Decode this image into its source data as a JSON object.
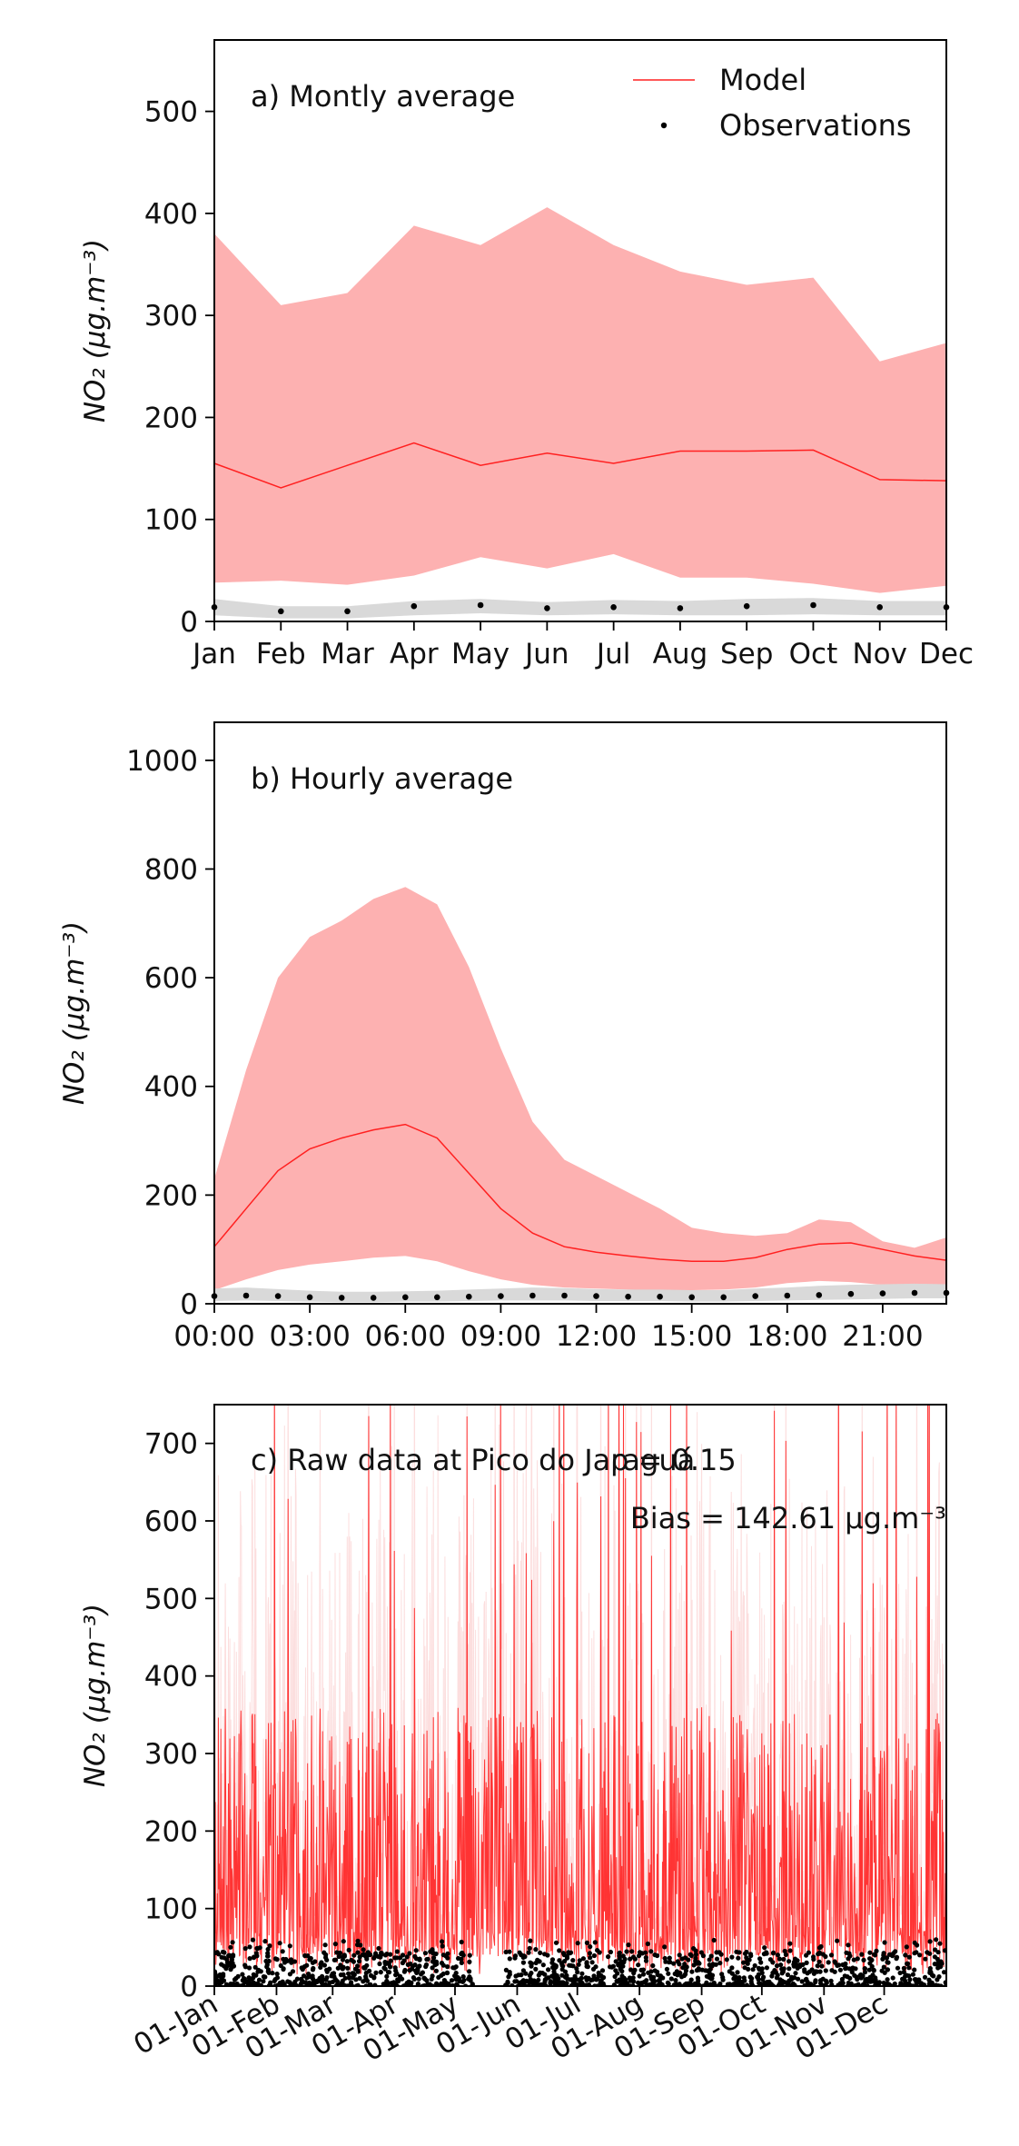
{
  "colors": {
    "model": "#ff2020",
    "model_band": "#fdb1b1",
    "observations": "#000000",
    "obs_band": "#d9d9d9"
  },
  "legend": {
    "model_label": "Model",
    "obs_label": "Observations"
  },
  "chart_data": [
    {
      "type": "area",
      "title": "a) Montly average",
      "ylabel": "NO₂ (μg.m⁻³)",
      "ylim": [
        0,
        570
      ],
      "yticks": [
        0,
        100,
        200,
        300,
        400,
        500
      ],
      "categories": [
        "Jan",
        "Feb",
        "Mar",
        "Apr",
        "May",
        "Jun",
        "Jul",
        "Aug",
        "Sep",
        "Oct",
        "Nov",
        "Dec"
      ],
      "legend_position": "top-right",
      "series": [
        {
          "name": "Model",
          "kind": "line",
          "values": [
            155,
            131,
            153,
            175,
            153,
            165,
            155,
            167,
            167,
            168,
            139,
            138
          ]
        },
        {
          "name": "Model range",
          "kind": "band",
          "lower": [
            38,
            40,
            36,
            45,
            63,
            52,
            66,
            43,
            43,
            37,
            28,
            35
          ],
          "upper": [
            380,
            310,
            322,
            388,
            369,
            406,
            369,
            343,
            330,
            337,
            255,
            273
          ]
        },
        {
          "name": "Observations",
          "kind": "points",
          "values": [
            14,
            10,
            10,
            15,
            16,
            13,
            14,
            13,
            15,
            16,
            14,
            14
          ]
        },
        {
          "name": "Observations range",
          "kind": "band",
          "lower": [
            6,
            3,
            3,
            6,
            8,
            6,
            7,
            6,
            6,
            7,
            6,
            6
          ],
          "upper": [
            22,
            15,
            15,
            20,
            22,
            19,
            21,
            20,
            22,
            23,
            20,
            20
          ]
        }
      ]
    },
    {
      "type": "area",
      "title": "b) Hourly average",
      "ylabel": "NO₂ (μg.m⁻³)",
      "ylim": [
        0,
        1070
      ],
      "yticks": [
        0,
        200,
        400,
        600,
        800,
        1000
      ],
      "xlim": [
        0,
        23
      ],
      "xticks": [
        "00:00",
        "03:00",
        "06:00",
        "09:00",
        "12:00",
        "15:00",
        "18:00",
        "21:00"
      ],
      "series": [
        {
          "name": "Model",
          "kind": "line",
          "values": [
            105,
            175,
            245,
            285,
            305,
            320,
            330,
            305,
            240,
            175,
            130,
            105,
            95,
            88,
            82,
            78,
            78,
            85,
            100,
            110,
            112,
            100,
            88,
            80
          ]
        },
        {
          "name": "Model range",
          "kind": "band",
          "lower": [
            25,
            45,
            62,
            72,
            78,
            85,
            88,
            78,
            60,
            45,
            35,
            30,
            28,
            26,
            25,
            25,
            26,
            30,
            38,
            42,
            40,
            35,
            28,
            25
          ],
          "upper": [
            230,
            430,
            600,
            675,
            705,
            745,
            767,
            735,
            620,
            470,
            335,
            265,
            235,
            205,
            175,
            140,
            130,
            125,
            130,
            155,
            150,
            115,
            103,
            122
          ]
        },
        {
          "name": "Observations",
          "kind": "points",
          "values": [
            14,
            15,
            14,
            12,
            11,
            11,
            12,
            12,
            13,
            14,
            15,
            15,
            14,
            13,
            13,
            12,
            12,
            14,
            15,
            16,
            18,
            19,
            20,
            20
          ]
        },
        {
          "name": "Observations range",
          "kind": "band",
          "lower": [
            5,
            6,
            5,
            4,
            3,
            3,
            4,
            4,
            5,
            6,
            6,
            6,
            5,
            5,
            5,
            4,
            4,
            5,
            6,
            7,
            8,
            9,
            10,
            10
          ],
          "upper": [
            28,
            30,
            27,
            24,
            22,
            22,
            23,
            24,
            26,
            28,
            30,
            29,
            27,
            26,
            26,
            25,
            25,
            28,
            30,
            33,
            35,
            36,
            37,
            36
          ]
        }
      ]
    },
    {
      "type": "line",
      "title": "c) Raw data at Pico do Jaraguá",
      "stats": {
        "correlation": "ρ = 0.15",
        "bias": "Bias = 142.61 μg.m⁻³"
      },
      "ylabel": "NO₂ (μg.m⁻³)",
      "ylim": [
        0,
        750
      ],
      "yticks": [
        0,
        100,
        200,
        300,
        400,
        500,
        600,
        700
      ],
      "x_range": [
        "01-Jan",
        "31-Dec"
      ],
      "xticks": [
        "01-Jan",
        "01-Feb",
        "01-Mar",
        "01-Apr",
        "01-May",
        "01-Jun",
        "01-Jul",
        "01-Aug",
        "01-Sep",
        "01-Oct",
        "01-Nov",
        "01-Dec"
      ],
      "series": [
        {
          "name": "Model",
          "kind": "hourly-line",
          "typical_range": [
            0,
            350
          ],
          "peaks_above": 750
        },
        {
          "name": "Observations",
          "kind": "hourly-points",
          "typical_range": [
            0,
            60
          ],
          "gap": [
            "09-May",
            "25-May"
          ]
        }
      ]
    }
  ]
}
